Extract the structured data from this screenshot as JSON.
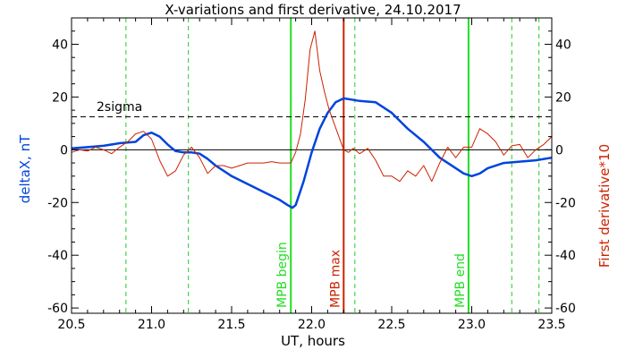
{
  "chart_data": {
    "type": "line",
    "title": "X-variations and first derivative, 24.10.2017",
    "xlabel": "UT, hours",
    "ylabel_left": "deltaX, nT",
    "ylabel_right": "First derivative*10",
    "xlim": [
      20.5,
      23.5
    ],
    "ylim": [
      -62,
      50
    ],
    "x_ticks": [
      "20.5",
      "21.0",
      "21.5",
      "22.0",
      "22.5",
      "23.0",
      "23.5"
    ],
    "y_ticks": [
      "-60",
      "-40",
      "-20",
      "0",
      "20",
      "40"
    ],
    "colors": {
      "deltaX": "#0044dd",
      "derivative": "#cc2200",
      "mpb_boundary": "#22dd22",
      "mpb_max": "#cc2200",
      "dashed_markers": "#22cc22",
      "reference": "#000000"
    },
    "series": [
      {
        "key": "deltaX",
        "x": [
          20.5,
          20.6,
          20.7,
          20.8,
          20.9,
          20.95,
          21.0,
          21.05,
          21.1,
          21.15,
          21.2,
          21.25,
          21.3,
          21.35,
          21.4,
          21.5,
          21.6,
          21.7,
          21.8,
          21.85,
          21.88,
          21.9,
          21.95,
          22.0,
          22.05,
          22.1,
          22.15,
          22.2,
          22.25,
          22.3,
          22.4,
          22.5,
          22.6,
          22.7,
          22.8,
          22.9,
          22.95,
          23.0,
          23.05,
          23.1,
          23.2,
          23.3,
          23.4,
          23.5
        ],
        "y": [
          0.5,
          1,
          1.5,
          2.5,
          3,
          5.5,
          6.5,
          5,
          2,
          -0.5,
          -1,
          -1,
          -1.5,
          -3.5,
          -6,
          -10,
          -13,
          -16,
          -19,
          -21,
          -22,
          -21,
          -12,
          -1,
          8,
          14,
          18,
          19.5,
          19,
          18.5,
          18,
          14,
          8,
          3,
          -3,
          -7,
          -9,
          -10,
          -9,
          -7,
          -5,
          -4.5,
          -4,
          -3
        ]
      },
      {
        "key": "derivative",
        "x": [
          20.5,
          20.55,
          20.6,
          20.65,
          20.7,
          20.75,
          20.8,
          20.85,
          20.9,
          20.95,
          21.0,
          21.05,
          21.1,
          21.15,
          21.2,
          21.25,
          21.3,
          21.35,
          21.4,
          21.45,
          21.5,
          21.55,
          21.6,
          21.65,
          21.7,
          21.75,
          21.8,
          21.85,
          21.87,
          21.9,
          21.93,
          21.96,
          21.99,
          22.02,
          22.05,
          22.08,
          22.11,
          22.14,
          22.17,
          22.2,
          22.23,
          22.26,
          22.3,
          22.35,
          22.4,
          22.45,
          22.5,
          22.55,
          22.6,
          22.65,
          22.7,
          22.75,
          22.8,
          22.85,
          22.9,
          22.95,
          23.0,
          23.05,
          23.1,
          23.15,
          23.2,
          23.25,
          23.3,
          23.35,
          23.4,
          23.45,
          23.5
        ],
        "y": [
          -1,
          0,
          -0.5,
          1,
          0,
          -1.5,
          1,
          3,
          6,
          7,
          4,
          -4,
          -10,
          -8,
          -2,
          1,
          -3,
          -9,
          -6,
          -6,
          -7,
          -6,
          -5,
          -5,
          -5,
          -4.5,
          -5,
          -5,
          -5,
          -1,
          6,
          19,
          38,
          45,
          30,
          22,
          15,
          10,
          5,
          0,
          -1,
          0.5,
          -1.5,
          0.5,
          -4,
          -10,
          -10,
          -12,
          -8,
          -10,
          -6,
          -12,
          -5,
          1,
          -3,
          1,
          1,
          8,
          6,
          3,
          -2,
          1.5,
          2,
          -3,
          0,
          2,
          5
        ]
      }
    ],
    "reference_lines": {
      "two_sigma_label": "2sigma",
      "two_sigma_value": 12.5,
      "zero_value": 0
    },
    "events": [
      {
        "key": "mpb_begin",
        "label": "MPB begin",
        "x": 21.87
      },
      {
        "key": "mpb_max",
        "label": "MPB max",
        "x": 22.2
      },
      {
        "key": "mpb_end",
        "label": "MPB end",
        "x": 22.98
      }
    ],
    "dashed_markers_x": [
      20.84,
      21.23,
      22.27,
      23.25,
      23.42
    ]
  }
}
